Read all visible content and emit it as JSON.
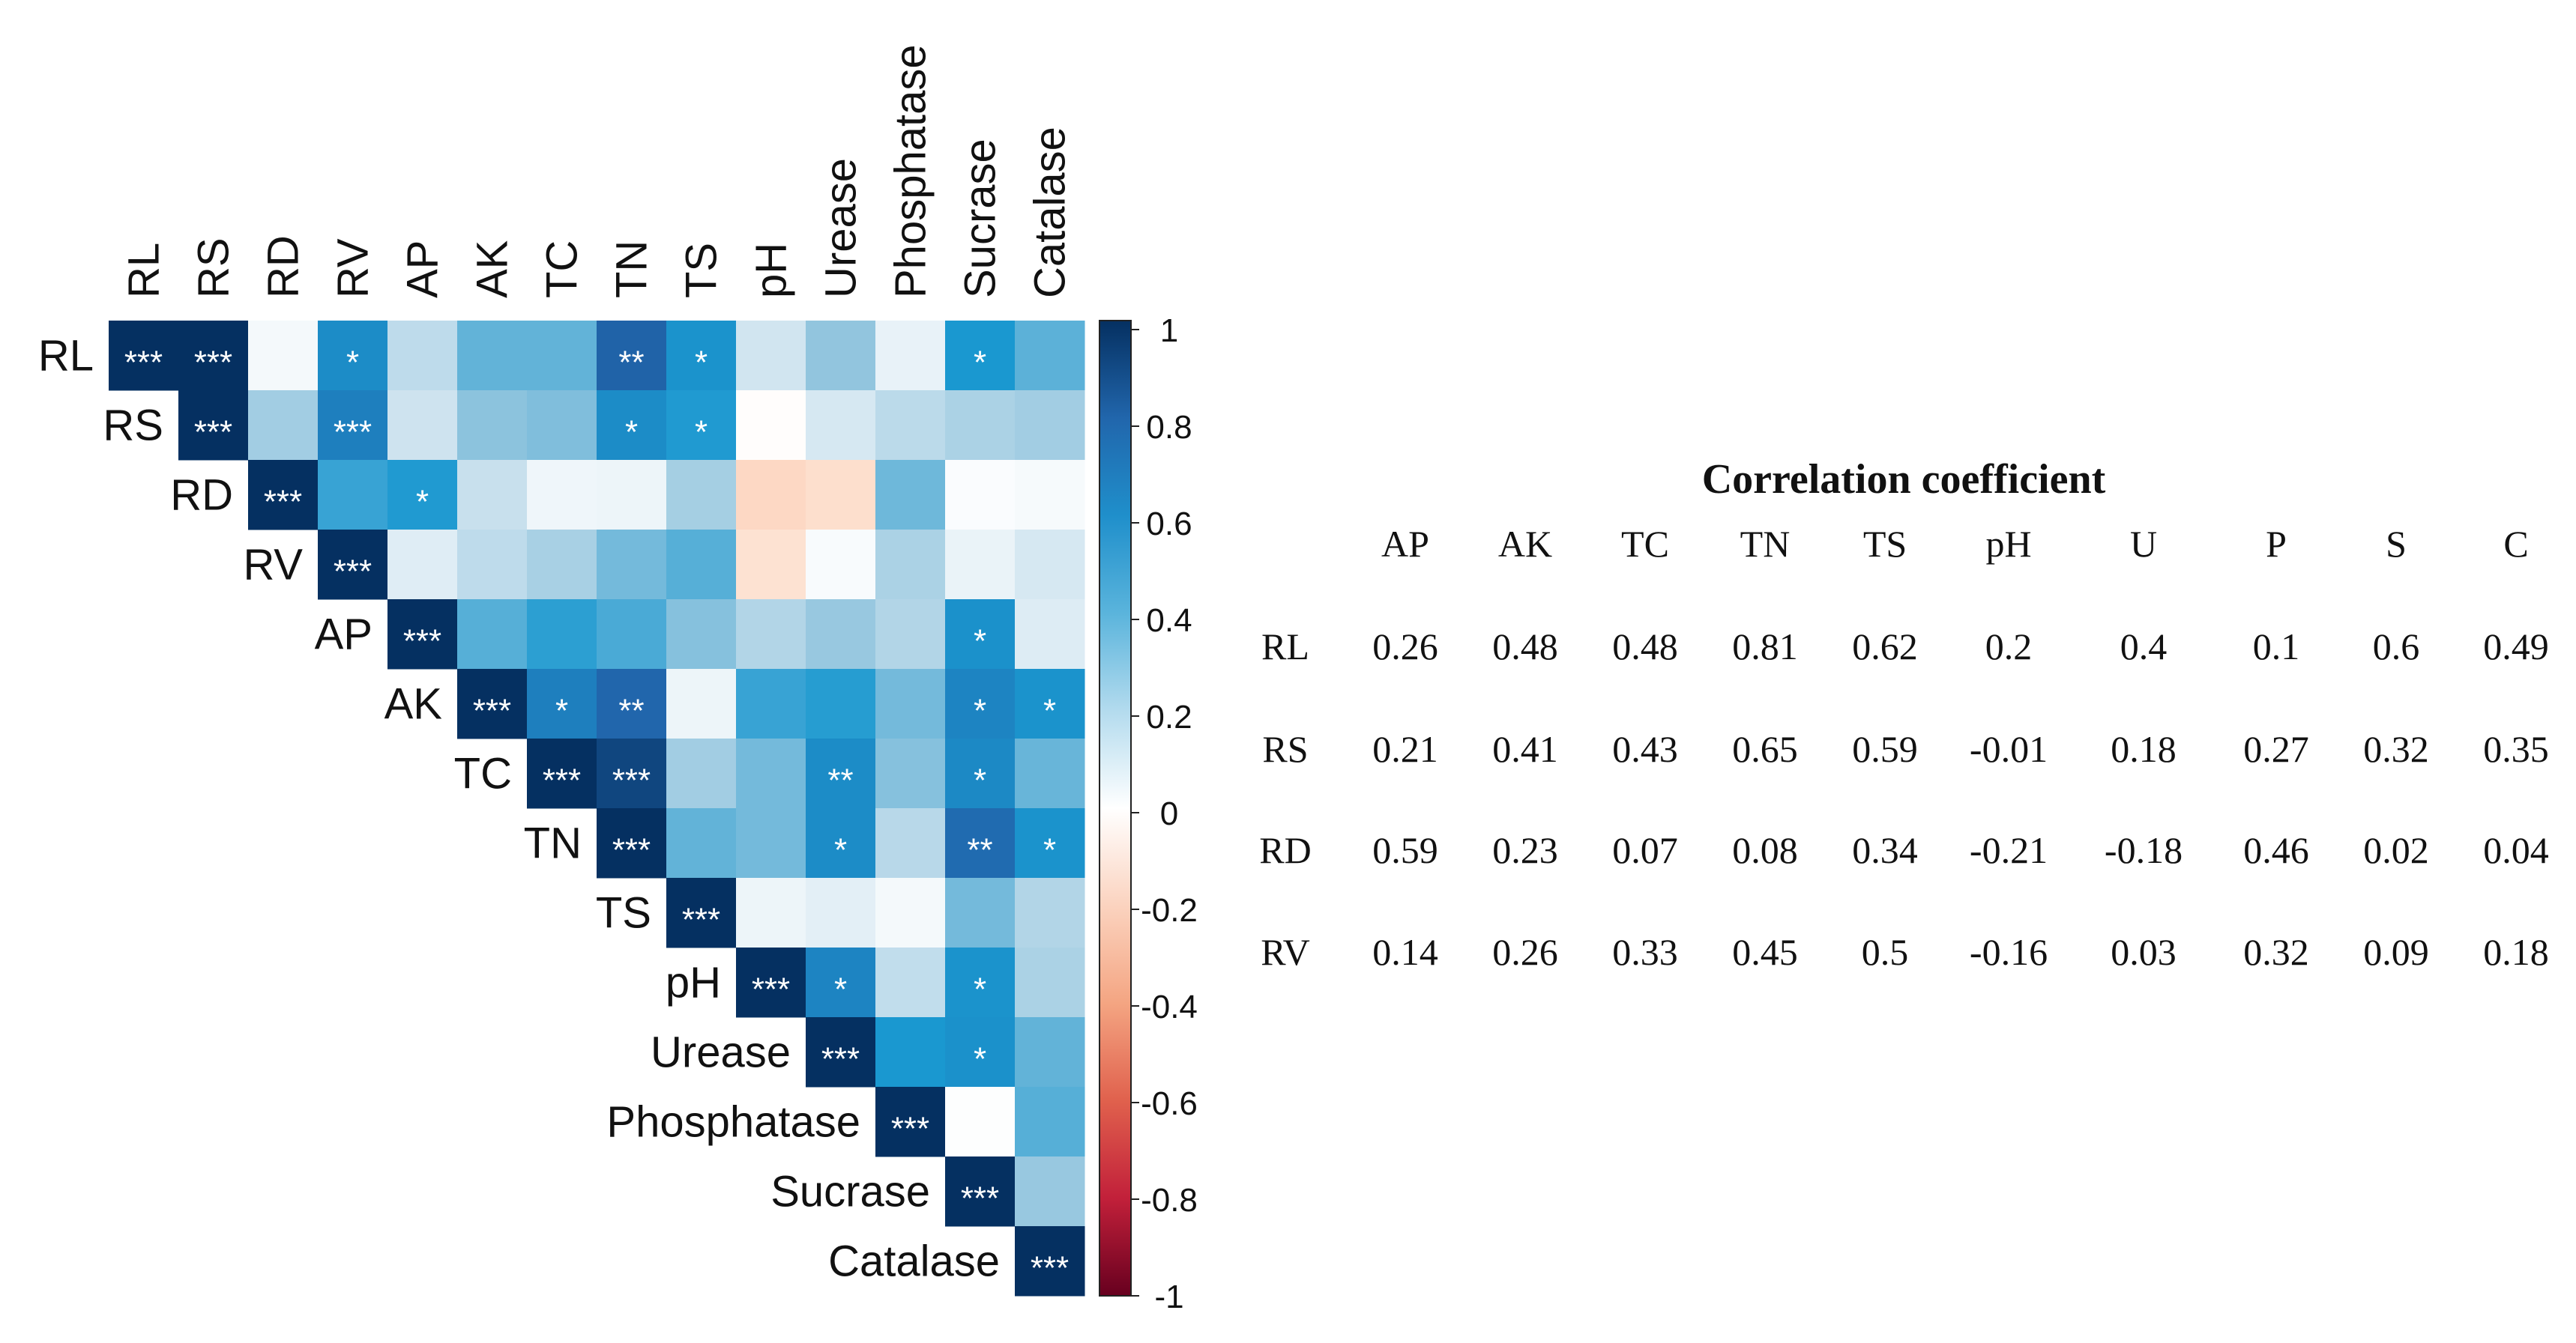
{
  "chart_data": [
    {
      "type": "heatmap",
      "variables": [
        "RL",
        "RS",
        "RD",
        "RV",
        "AP",
        "AK",
        "TC",
        "TN",
        "TS",
        "pH",
        "Urease",
        "Phosphatase",
        "Sucrase",
        "Catalase"
      ],
      "upper_triangle": [
        [
          1,
          1,
          0.05,
          0.65,
          0.26,
          0.48,
          0.48,
          0.81,
          0.62,
          0.2,
          0.4,
          0.1,
          0.6,
          0.49
        ],
        [
          null,
          1,
          0.35,
          0.7,
          0.21,
          0.41,
          0.43,
          0.65,
          0.59,
          -0.01,
          0.18,
          0.27,
          0.32,
          0.35
        ],
        [
          null,
          null,
          1,
          0.55,
          0.59,
          0.23,
          0.07,
          0.08,
          0.34,
          -0.21,
          -0.18,
          0.46,
          0.02,
          0.04
        ],
        [
          null,
          null,
          null,
          1,
          0.14,
          0.26,
          0.33,
          0.45,
          0.5,
          -0.16,
          0.03,
          0.32,
          0.09,
          0.18
        ],
        [
          null,
          null,
          null,
          null,
          1,
          0.5,
          0.57,
          0.52,
          0.42,
          0.3,
          0.38,
          0.3,
          0.63,
          0.15
        ],
        [
          null,
          null,
          null,
          null,
          null,
          1,
          0.7,
          0.8,
          0.08,
          0.55,
          0.58,
          0.45,
          0.68,
          0.62
        ],
        [
          null,
          null,
          null,
          null,
          null,
          null,
          1,
          0.92,
          0.35,
          0.45,
          0.65,
          0.42,
          0.66,
          0.47
        ],
        [
          null,
          null,
          null,
          null,
          null,
          null,
          null,
          1,
          0.48,
          0.45,
          0.65,
          0.28,
          0.78,
          0.62
        ],
        [
          null,
          null,
          null,
          null,
          null,
          null,
          null,
          null,
          1,
          0.08,
          0.12,
          0.05,
          0.45,
          0.3
        ],
        [
          null,
          null,
          null,
          null,
          null,
          null,
          null,
          null,
          null,
          1,
          0.68,
          0.25,
          0.62,
          0.32
        ],
        [
          null,
          null,
          null,
          null,
          null,
          null,
          null,
          null,
          null,
          null,
          1,
          0.6,
          0.63,
          0.48
        ],
        [
          null,
          null,
          null,
          null,
          null,
          null,
          null,
          null,
          null,
          null,
          null,
          1,
          0.01,
          0.5
        ],
        [
          null,
          null,
          null,
          null,
          null,
          null,
          null,
          null,
          null,
          null,
          null,
          null,
          1,
          0.38
        ],
        [
          null,
          null,
          null,
          null,
          null,
          null,
          null,
          null,
          null,
          null,
          null,
          null,
          null,
          1
        ]
      ],
      "significance": [
        [
          "***",
          "***",
          "",
          "*",
          "",
          "",
          "",
          "**",
          "*",
          "",
          "",
          "",
          "*",
          ""
        ],
        [
          "",
          "***",
          "",
          "***",
          "",
          "",
          "",
          "*",
          "*",
          "",
          "",
          "",
          "",
          ""
        ],
        [
          "",
          "",
          "***",
          "",
          "*",
          "",
          "",
          "",
          "",
          "",
          "",
          "",
          "",
          ""
        ],
        [
          "",
          "",
          "",
          "***",
          "",
          "",
          "",
          "",
          "",
          "",
          "",
          "",
          "",
          ""
        ],
        [
          "",
          "",
          "",
          "",
          "***",
          "",
          "",
          "",
          "",
          "",
          "",
          "",
          "*",
          ""
        ],
        [
          "",
          "",
          "",
          "",
          "",
          "***",
          "*",
          "**",
          "",
          "",
          "",
          "",
          "*",
          "*"
        ],
        [
          "",
          "",
          "",
          "",
          "",
          "",
          "***",
          "***",
          "",
          "",
          "**",
          "",
          "*",
          ""
        ],
        [
          "",
          "",
          "",
          "",
          "",
          "",
          "",
          "***",
          "",
          "",
          "*",
          "",
          "**",
          "*"
        ],
        [
          "",
          "",
          "",
          "",
          "",
          "",
          "",
          "",
          "***",
          "",
          "",
          "",
          "",
          ""
        ],
        [
          "",
          "",
          "",
          "",
          "",
          "",
          "",
          "",
          "",
          "***",
          "*",
          "",
          "*",
          ""
        ],
        [
          "",
          "",
          "",
          "",
          "",
          "",
          "",
          "",
          "",
          "",
          "***",
          "",
          "*",
          ""
        ],
        [
          "",
          "",
          "",
          "",
          "",
          "",
          "",
          "",
          "",
          "",
          "",
          "***",
          "",
          ""
        ],
        [
          "",
          "",
          "",
          "",
          "",
          "",
          "",
          "",
          "",
          "",
          "",
          "",
          "***",
          ""
        ],
        [
          "",
          "",
          "",
          "",
          "",
          "",
          "",
          "",
          "",
          "",
          "",
          "",
          "",
          "***"
        ]
      ],
      "colorbar": {
        "range": [
          -1,
          1
        ],
        "ticks": [
          "1",
          "0.8",
          "0.6",
          "0.4",
          "0.2",
          "0",
          "-0.2",
          "-0.4",
          "-0.6",
          "-0.8",
          "-1"
        ],
        "low_color": "#67001f",
        "mid_color": "#ffffff",
        "high_color": "#053061"
      }
    },
    {
      "type": "table",
      "title": "Correlation coefficient",
      "columns": [
        "AP",
        "AK",
        "TC",
        "TN",
        "TS",
        "pH",
        "U",
        "P",
        "S",
        "C"
      ],
      "rows": [
        {
          "label": "RL",
          "values": [
            "0.26",
            "0.48",
            "0.48",
            "0.81",
            "0.62",
            "0.2",
            "0.4",
            "0.1",
            "0.6",
            "0.49"
          ]
        },
        {
          "label": "RS",
          "values": [
            "0.21",
            "0.41",
            "0.43",
            "0.65",
            "0.59",
            "-0.01",
            "0.18",
            "0.27",
            "0.32",
            "0.35"
          ]
        },
        {
          "label": "RD",
          "values": [
            "0.59",
            "0.23",
            "0.07",
            "0.08",
            "0.34",
            "-0.21",
            "-0.18",
            "0.46",
            "0.02",
            "0.04"
          ]
        },
        {
          "label": "RV",
          "values": [
            "0.14",
            "0.26",
            "0.33",
            "0.45",
            "0.5",
            "-0.16",
            "0.03",
            "0.32",
            "0.09",
            "0.18"
          ]
        }
      ]
    }
  ]
}
